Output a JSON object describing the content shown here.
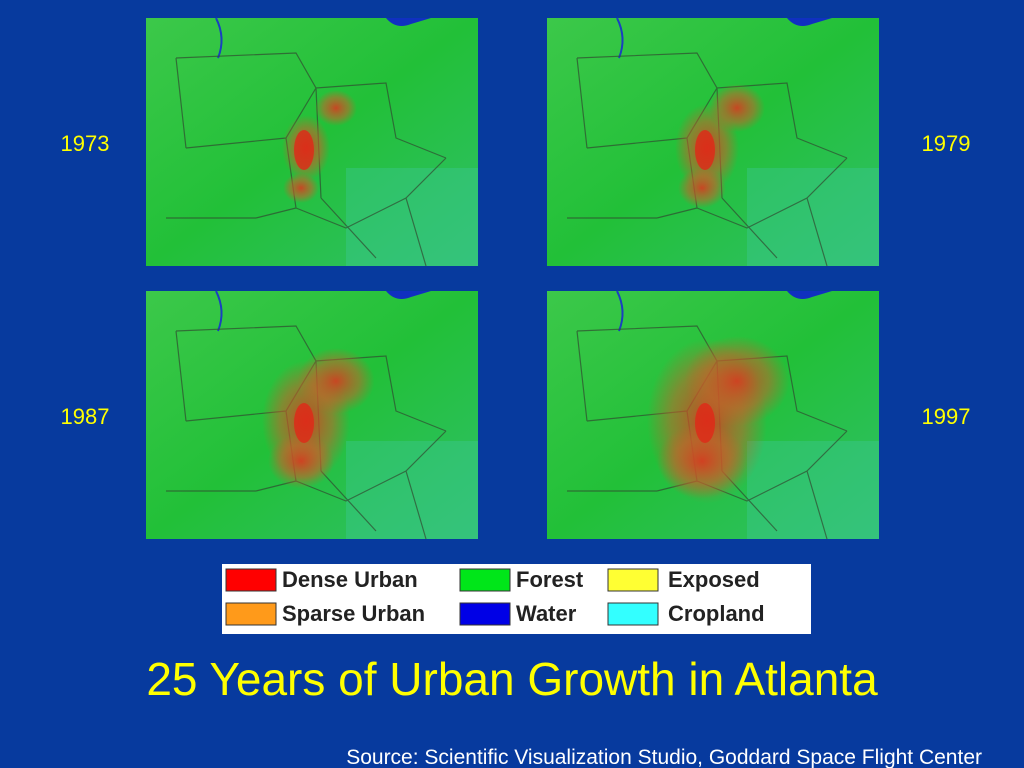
{
  "maps": [
    {
      "year": "1973"
    },
    {
      "year": "1979"
    },
    {
      "year": "1987"
    },
    {
      "year": "1997"
    }
  ],
  "legend": [
    {
      "label": "Dense Urban",
      "color": "#ff0000"
    },
    {
      "label": "Sparse Urban",
      "color": "#ff9a1a"
    },
    {
      "label": "Forest",
      "color": "#00e619"
    },
    {
      "label": "Water",
      "color": "#0000e6"
    },
    {
      "label": "Exposed",
      "color": "#ffff33"
    },
    {
      "label": "Cropland",
      "color": "#33ffff"
    }
  ],
  "title": "25 Years of Urban Growth in Atlanta",
  "source": "Source:  Scientific Visualization Studio, Goddard Space Flight Center"
}
